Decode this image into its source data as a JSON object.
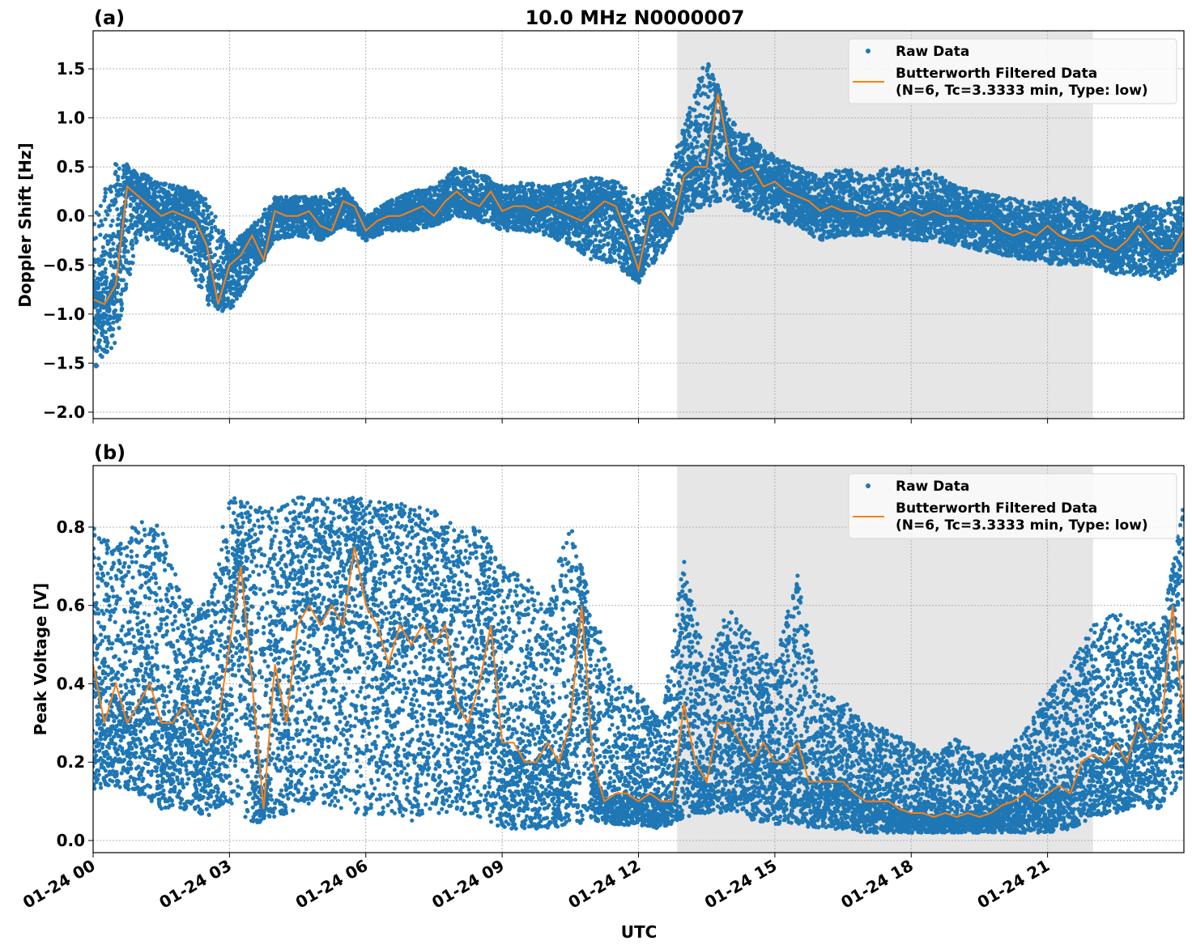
{
  "colors": {
    "raw": "#1f77b4",
    "filtered": "#ff7f0e",
    "shade": "#e6e6e6",
    "grid": "#b0b0b0"
  },
  "chart_data": [
    {
      "type": "scatter+line",
      "panel_label": "(a)",
      "title": "10.0 MHz N0000007",
      "xlabel": "",
      "ylabel": "Doppler Shift [Hz]",
      "xlim_hours_utc": [
        0,
        24
      ],
      "ylim": [
        -2.066,
        1.888
      ],
      "yticks": [
        "1.5",
        "1.0",
        "0.5",
        "0.0",
        "−0.5",
        "−1.0",
        "−1.5",
        "−2.0"
      ],
      "ytick_values": [
        1.5,
        1.0,
        0.5,
        0.0,
        -0.5,
        -1.0,
        -1.5,
        -2.0
      ],
      "grid": true,
      "shaded_span_hours_utc": [
        12.85,
        22.0
      ],
      "legend": {
        "placement": "top-right",
        "entries": [
          "Raw Data",
          "Butterworth Filtered Data",
          "(N=6, Tc=3.3333 min, Type: low)"
        ]
      },
      "filtered_step_hours": 0.25,
      "filtered": [
        -0.85,
        -0.9,
        -0.7,
        0.3,
        0.2,
        0.1,
        0.0,
        0.05,
        0.0,
        -0.05,
        -0.3,
        -0.9,
        -0.5,
        -0.4,
        -0.2,
        -0.45,
        0.05,
        0.0,
        0.0,
        0.05,
        -0.1,
        -0.15,
        0.15,
        0.1,
        -0.15,
        -0.05,
        0.0,
        0.0,
        0.05,
        0.1,
        0.0,
        0.15,
        0.25,
        0.15,
        0.1,
        0.25,
        0.05,
        0.1,
        0.1,
        0.05,
        0.1,
        0.05,
        0.0,
        -0.05,
        0.05,
        0.15,
        0.1,
        -0.2,
        -0.55,
        0.0,
        0.05,
        -0.1,
        0.4,
        0.5,
        0.5,
        1.25,
        0.6,
        0.45,
        0.5,
        0.3,
        0.35,
        0.25,
        0.2,
        0.15,
        0.05,
        0.1,
        0.05,
        0.05,
        0.0,
        0.05,
        0.05,
        0.0,
        0.05,
        0.0,
        0.05,
        0.0,
        0.0,
        -0.05,
        -0.05,
        -0.05,
        -0.15,
        -0.2,
        -0.15,
        -0.2,
        -0.1,
        -0.2,
        -0.25,
        -0.25,
        -0.2,
        -0.3,
        -0.35,
        -0.25,
        -0.1,
        -0.25,
        -0.35,
        -0.35,
        -0.15
      ],
      "raw_envelope_step_hours": 0.5,
      "raw_high": [
        -0.05,
        0.6,
        0.45,
        0.35,
        0.3,
        0.2,
        -0.3,
        -0.1,
        0.2,
        0.2,
        0.2,
        0.3,
        0.0,
        0.15,
        0.25,
        0.3,
        0.5,
        0.45,
        0.3,
        0.35,
        0.3,
        0.35,
        0.4,
        0.35,
        0.2,
        0.3,
        0.9,
        1.65,
        1.0,
        0.8,
        0.6,
        0.5,
        0.4,
        0.5,
        0.4,
        0.5,
        0.5,
        0.45,
        0.3,
        0.25,
        0.2,
        0.15,
        0.15,
        0.2,
        0.05,
        0.05,
        0.15,
        0.1,
        0.2
      ],
      "raw_low": [
        -1.6,
        -1.3,
        -0.2,
        -0.3,
        -0.4,
        -0.9,
        -1.0,
        -0.6,
        -0.25,
        -0.2,
        -0.25,
        -0.1,
        -0.25,
        -0.15,
        -0.15,
        -0.1,
        0.0,
        -0.05,
        -0.15,
        -0.15,
        -0.2,
        -0.3,
        -0.45,
        -0.5,
        -0.7,
        -0.4,
        0.0,
        0.1,
        0.15,
        0.0,
        -0.05,
        -0.1,
        -0.25,
        -0.2,
        -0.2,
        -0.2,
        -0.25,
        -0.25,
        -0.3,
        -0.35,
        -0.4,
        -0.45,
        -0.5,
        -0.5,
        -0.5,
        -0.6,
        -0.6,
        -0.65,
        -0.5
      ]
    },
    {
      "type": "scatter+line",
      "panel_label": "(b)",
      "title": "",
      "xlabel": "UTC",
      "ylabel": "Peak Voltage [V]",
      "xlim_hours_utc": [
        0,
        24
      ],
      "ylim": [
        -0.031,
        0.957
      ],
      "yticks": [
        "0.8",
        "0.6",
        "0.4",
        "0.2",
        "0.0"
      ],
      "ytick_values": [
        0.8,
        0.6,
        0.4,
        0.2,
        0.0
      ],
      "xticks": [
        "01-24 00",
        "01-24 03",
        "01-24 06",
        "01-24 09",
        "01-24 12",
        "01-24 15",
        "01-24 18",
        "01-24 21"
      ],
      "xtick_values_hours": [
        0,
        3,
        6,
        9,
        12,
        15,
        18,
        21
      ],
      "grid": true,
      "shaded_span_hours_utc": [
        12.85,
        22.0
      ],
      "legend": {
        "placement": "top-right",
        "entries": [
          "Raw Data",
          "Butterworth Filtered Data",
          "(N=6, Tc=3.3333 min, Type: low)"
        ]
      },
      "filtered_step_hours": 0.25,
      "filtered": [
        0.45,
        0.3,
        0.4,
        0.3,
        0.35,
        0.4,
        0.3,
        0.3,
        0.35,
        0.3,
        0.25,
        0.3,
        0.5,
        0.7,
        0.4,
        0.08,
        0.45,
        0.3,
        0.55,
        0.6,
        0.55,
        0.6,
        0.55,
        0.75,
        0.6,
        0.55,
        0.45,
        0.55,
        0.5,
        0.55,
        0.5,
        0.55,
        0.35,
        0.3,
        0.4,
        0.55,
        0.25,
        0.25,
        0.2,
        0.2,
        0.25,
        0.2,
        0.3,
        0.6,
        0.2,
        0.1,
        0.12,
        0.12,
        0.1,
        0.12,
        0.1,
        0.1,
        0.35,
        0.2,
        0.15,
        0.3,
        0.3,
        0.25,
        0.2,
        0.25,
        0.2,
        0.2,
        0.25,
        0.15,
        0.15,
        0.15,
        0.15,
        0.12,
        0.1,
        0.1,
        0.1,
        0.08,
        0.07,
        0.07,
        0.06,
        0.07,
        0.06,
        0.07,
        0.06,
        0.07,
        0.09,
        0.1,
        0.12,
        0.1,
        0.12,
        0.14,
        0.12,
        0.2,
        0.22,
        0.2,
        0.25,
        0.2,
        0.3,
        0.25,
        0.28,
        0.6,
        0.3
      ],
      "raw_envelope_step_hours": 0.5,
      "raw_high": [
        0.8,
        0.75,
        0.82,
        0.8,
        0.62,
        0.6,
        0.88,
        0.86,
        0.85,
        0.88,
        0.87,
        0.88,
        0.87,
        0.86,
        0.86,
        0.85,
        0.8,
        0.8,
        0.7,
        0.68,
        0.6,
        0.82,
        0.58,
        0.42,
        0.38,
        0.3,
        0.72,
        0.45,
        0.6,
        0.52,
        0.45,
        0.68,
        0.38,
        0.36,
        0.3,
        0.28,
        0.25,
        0.22,
        0.26,
        0.22,
        0.22,
        0.28,
        0.38,
        0.45,
        0.55,
        0.58,
        0.56,
        0.55,
        0.86
      ],
      "raw_low": [
        0.13,
        0.14,
        0.12,
        0.08,
        0.08,
        0.06,
        0.1,
        0.04,
        0.06,
        0.08,
        0.1,
        0.05,
        0.06,
        0.06,
        0.05,
        0.07,
        0.07,
        0.06,
        0.03,
        0.03,
        0.03,
        0.04,
        0.05,
        0.04,
        0.04,
        0.03,
        0.06,
        0.07,
        0.07,
        0.05,
        0.04,
        0.04,
        0.03,
        0.03,
        0.02,
        0.02,
        0.02,
        0.02,
        0.02,
        0.02,
        0.02,
        0.02,
        0.02,
        0.03,
        0.06,
        0.07,
        0.08,
        0.08,
        0.15
      ]
    }
  ]
}
